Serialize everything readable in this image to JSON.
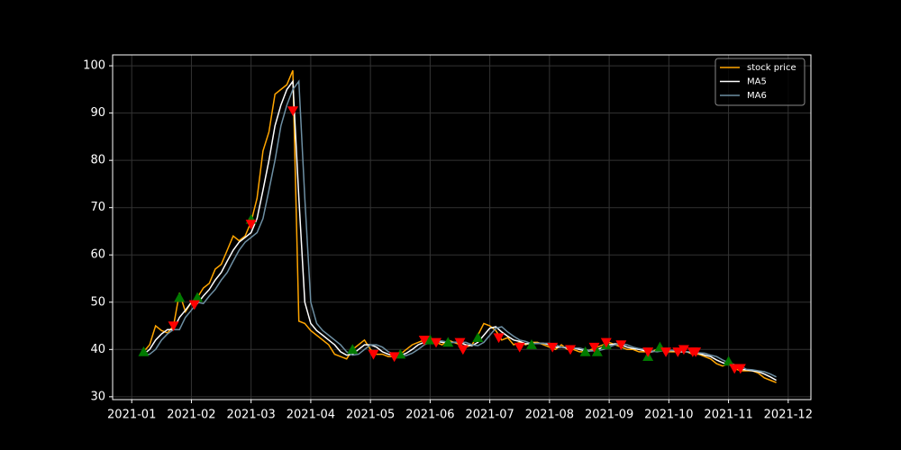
{
  "chart_data": {
    "type": "line",
    "x": [
      1.2,
      1.3,
      1.4,
      1.5,
      1.6,
      1.7,
      1.8,
      1.9,
      2.0,
      2.1,
      2.2,
      2.3,
      2.4,
      2.5,
      2.6,
      2.7,
      2.8,
      2.9,
      3.0,
      3.1,
      3.2,
      3.3,
      3.4,
      3.5,
      3.6,
      3.7,
      3.8,
      3.9,
      4.0,
      4.1,
      4.2,
      4.3,
      4.4,
      4.5,
      4.6,
      4.7,
      4.8,
      4.9,
      5.0,
      5.1,
      5.2,
      5.3,
      5.4,
      5.5,
      5.6,
      5.7,
      5.8,
      5.9,
      6.0,
      6.1,
      6.2,
      6.3,
      6.4,
      6.5,
      6.6,
      6.7,
      6.8,
      6.9,
      7.0,
      7.1,
      7.2,
      7.3,
      7.4,
      7.5,
      7.6,
      7.7,
      7.8,
      7.9,
      8.0,
      8.1,
      8.2,
      8.3,
      8.4,
      8.5,
      8.6,
      8.7,
      8.8,
      8.9,
      9.0,
      9.1,
      9.2,
      9.3,
      9.4,
      9.5,
      9.6,
      9.7,
      9.8,
      9.9,
      10.0,
      10.1,
      10.2,
      10.3,
      10.4,
      10.5,
      10.6,
      10.7,
      10.8,
      10.9,
      11.0,
      11.1,
      11.2,
      11.3,
      11.4,
      11.5,
      11.6,
      11.7,
      11.8
    ],
    "series": [
      {
        "name": "stock price",
        "color": "#ffa500",
        "values": [
          39.5,
          41,
          45,
          44,
          43.5,
          45,
          52,
          48,
          50,
          51,
          53,
          54,
          57,
          58,
          61,
          64,
          63,
          64,
          67,
          72,
          82,
          86,
          94,
          95,
          96,
          99,
          46,
          45.5,
          44,
          43,
          42,
          41,
          39,
          38.5,
          38,
          40,
          41,
          42,
          40,
          39,
          39,
          38.5,
          38.5,
          39,
          40,
          41,
          41.5,
          42,
          42,
          41.5,
          41,
          42,
          41.5,
          41,
          40.5,
          41,
          43,
          45.5,
          45,
          44,
          42,
          42.5,
          41,
          41.5,
          41,
          41.5,
          41.5,
          41,
          40.5,
          40,
          41,
          40,
          40,
          39.5,
          39.5,
          40,
          40.5,
          41,
          41.5,
          41,
          40.5,
          40,
          40,
          39.5,
          39.5,
          39.5,
          40,
          40,
          39.5,
          39.5,
          39.5,
          39.5,
          39,
          39,
          38.5,
          38,
          37,
          36.5,
          37,
          36,
          35.5,
          35.5,
          35.5,
          35,
          34,
          33.5,
          33
        ]
      },
      {
        "name": "MA5",
        "color": "#ffffff",
        "values": [
          39,
          40,
          42,
          43.3,
          44.2,
          44.2,
          46.8,
          48.3,
          50,
          49.7,
          51.3,
          52.7,
          54.7,
          56.3,
          58.7,
          61,
          62.7,
          63.7,
          64.7,
          67.7,
          73.7,
          80,
          87.3,
          91.7,
          95,
          96.7,
          72,
          50,
          45.5,
          44,
          43,
          42,
          41,
          39.5,
          38.8,
          39,
          40,
          41,
          41,
          40.5,
          39.5,
          39,
          38.7,
          38.7,
          39.2,
          40,
          41,
          41.5,
          41.8,
          41.8,
          41.5,
          41.5,
          41.5,
          41.5,
          41,
          40.8,
          41.5,
          43,
          44.5,
          44.8,
          43.7,
          42.8,
          42,
          41.7,
          41.2,
          41.3,
          41.3,
          41.3,
          41,
          40.5,
          40.5,
          40.3,
          40.3,
          40,
          39.7,
          39.7,
          40,
          40.5,
          41,
          41.2,
          41,
          40.5,
          40.2,
          40,
          39.7,
          39.5,
          39.7,
          39.8,
          39.8,
          39.7,
          39.5,
          39.5,
          39.3,
          39.2,
          38.8,
          38.5,
          37.8,
          37.2,
          36.8,
          36.5,
          35.8,
          35.7,
          35.5,
          35.3,
          34.8,
          34.2,
          33.5
        ]
      },
      {
        "name": "MA6",
        "color": "#6d8fa3",
        "values": [
          38.8,
          39,
          40,
          42,
          43.3,
          44.2,
          44.2,
          46.8,
          48.3,
          50,
          49.7,
          51.3,
          52.7,
          54.7,
          56.3,
          58.7,
          61,
          62.7,
          63.7,
          64.7,
          67.7,
          73.7,
          80,
          87.3,
          91.7,
          95,
          96.7,
          72,
          50,
          45.5,
          44,
          43,
          42,
          41,
          39.5,
          38.8,
          39,
          40,
          41,
          41,
          40.5,
          39.5,
          39,
          38.7,
          38.7,
          39.2,
          40,
          41,
          41.5,
          41.8,
          41.8,
          41.5,
          41.5,
          41.5,
          41.5,
          41,
          40.8,
          41.5,
          43,
          44.5,
          44.8,
          43.7,
          42.8,
          42,
          41.7,
          41.2,
          41.3,
          41.3,
          41.3,
          41,
          40.5,
          40.5,
          40.3,
          40.3,
          40,
          39.7,
          39.7,
          40,
          40.5,
          41,
          41.2,
          41,
          40.5,
          40.2,
          40,
          39.7,
          39.5,
          39.7,
          39.8,
          39.8,
          39.7,
          39.5,
          39.5,
          39.3,
          39.2,
          38.8,
          38.5,
          37.8,
          37.2,
          36.8,
          36.5,
          35.8,
          35.7,
          35.5,
          35.3,
          34.8,
          34.2
        ]
      }
    ],
    "markers": [
      {
        "marker": "triangle-up",
        "color": "#007a00",
        "x": [
          1.2,
          1.8,
          2.1,
          3.0,
          4.7,
          5.5,
          6.0,
          6.3,
          6.8,
          7.7,
          8.6,
          8.8,
          8.95,
          9.65,
          9.85,
          11.0
        ],
        "values": [
          39.5,
          51,
          51,
          67.5,
          40,
          39,
          42,
          41.5,
          42.5,
          41,
          39.5,
          39.5,
          41,
          38.5,
          40.5,
          37.5
        ]
      },
      {
        "marker": "triangle-down",
        "color": "#ff0000",
        "x": [
          1.7,
          2.05,
          3.0,
          3.7,
          5.05,
          5.4,
          5.9,
          6.1,
          6.5,
          6.55,
          7.15,
          7.5,
          8.05,
          8.35,
          8.75,
          8.95,
          9.2,
          9.65,
          9.95,
          10.15,
          10.25,
          10.4,
          10.45,
          11.1,
          11.2
        ],
        "values": [
          45,
          49.5,
          66.5,
          90.5,
          39,
          38.5,
          42,
          41.5,
          41.5,
          40,
          42.5,
          40.5,
          40.5,
          40,
          40.5,
          41.5,
          41,
          39.5,
          39.5,
          39.5,
          40,
          39.5,
          39.5,
          36,
          36
        ]
      }
    ],
    "xlim": [
      0.68,
      12.38
    ],
    "xticks": [
      {
        "value": 1,
        "label": "2021-01"
      },
      {
        "value": 2,
        "label": "2021-02"
      },
      {
        "value": 3,
        "label": "2021-03"
      },
      {
        "value": 4,
        "label": "2021-04"
      },
      {
        "value": 5,
        "label": "2021-05"
      },
      {
        "value": 6,
        "label": "2021-06"
      },
      {
        "value": 7,
        "label": "2021-07"
      },
      {
        "value": 8,
        "label": "2021-08"
      },
      {
        "value": 9,
        "label": "2021-09"
      },
      {
        "value": 10,
        "label": "2021-10"
      },
      {
        "value": 11,
        "label": "2021-11"
      },
      {
        "value": 12,
        "label": "2021-12"
      }
    ],
    "ylim": [
      29.4,
      102.3
    ],
    "yticks": [
      30,
      40,
      50,
      60,
      70,
      80,
      90,
      100
    ],
    "grid": true,
    "legend": "upper right"
  }
}
